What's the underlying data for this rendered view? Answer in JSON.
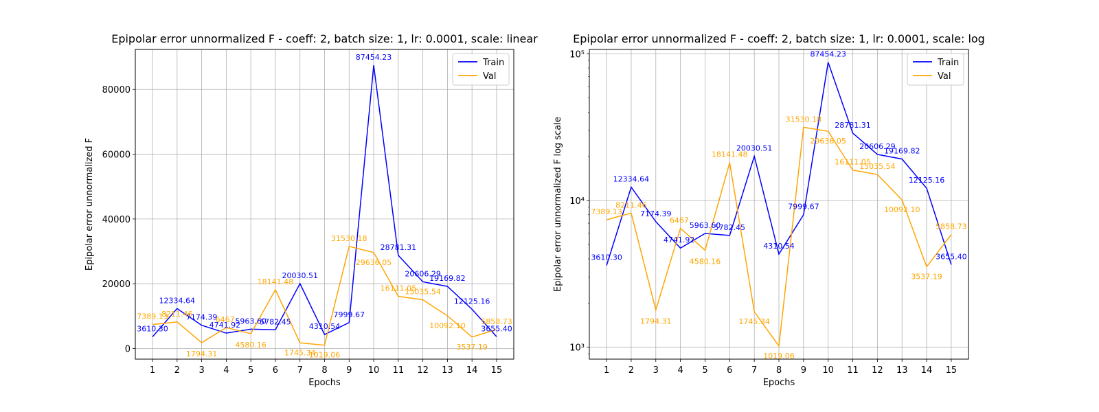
{
  "chart_data": [
    {
      "type": "line",
      "title": "Epipolar error unnormalized F - coeff: 2, batch size: 1, lr: 0.0001, scale: linear",
      "xlabel": "Epochs",
      "ylabel": "Epipolar error unnormalized F",
      "yscale": "linear",
      "x": [
        1,
        2,
        3,
        4,
        5,
        6,
        7,
        8,
        9,
        10,
        11,
        12,
        13,
        14,
        15
      ],
      "xlim": [
        0.3,
        15.7
      ],
      "ylim": [
        -3282,
        92347
      ],
      "yticks": [
        0,
        20000,
        40000,
        60000,
        80000
      ],
      "ytick_labels": [
        "0",
        "20000",
        "40000",
        "60000",
        "80000"
      ],
      "grid": true,
      "legend_position": "top-right",
      "series": [
        {
          "name": "Train",
          "color": "#0000ff",
          "values": [
            3610.3,
            12334.64,
            7174.39,
            4741.92,
            5963.6,
            5782.45,
            20030.51,
            4310.54,
            7999.67,
            87454.23,
            28781.31,
            20606.29,
            19169.82,
            12125.16,
            3655.4
          ],
          "labels": [
            "3610.30",
            "12334.64",
            "7174.39",
            "4741.92",
            "5963.60",
            "5782.45",
            "20030.51",
            "4310.54",
            "7999.67",
            "87454.23",
            "28781.31",
            "20606.29",
            "19169.82",
            "12125.16",
            "3655.40"
          ]
        },
        {
          "name": "Val",
          "color": "#ffa500",
          "values": [
            7389.13,
            8211.46,
            1794.31,
            6467.0,
            4580.16,
            18141.48,
            1745.34,
            1019.06,
            31530.18,
            29636.05,
            16111.05,
            15035.54,
            10092.1,
            3537.19,
            5858.73
          ],
          "labels": [
            "7389.13",
            "8211.46",
            "1794.31",
            "6467.",
            "4580.16",
            "18141.48",
            "1745.34",
            "1019.06",
            "31530.18",
            "29636.05",
            "16111.05",
            "15035.54",
            "10092.10",
            "3537.19",
            "5858.73"
          ]
        }
      ]
    },
    {
      "type": "line",
      "title": "Epipolar error unnormalized F - coeff: 2, batch size: 1, lr: 0.0001, scale: log",
      "xlabel": "Epochs",
      "ylabel": "Epipolar error unnormalized F log scale",
      "yscale": "log",
      "x": [
        1,
        2,
        3,
        4,
        5,
        6,
        7,
        8,
        9,
        10,
        11,
        12,
        13,
        14,
        15
      ],
      "xlim": [
        0.3,
        15.7
      ],
      "ylim": [
        830,
        107000
      ],
      "yticks": [
        1000,
        10000,
        100000
      ],
      "ytick_labels": [
        "10³",
        "10⁴",
        "10⁵"
      ],
      "grid": true,
      "legend_position": "top-right",
      "series": [
        {
          "name": "Train",
          "color": "#0000ff",
          "values": [
            3610.3,
            12334.64,
            7174.39,
            4741.92,
            5963.6,
            5782.45,
            20030.51,
            4310.54,
            7999.67,
            87454.23,
            28781.31,
            20606.29,
            19169.82,
            12125.16,
            3655.4
          ],
          "labels": [
            "3610.30",
            "12334.64",
            "7174.39",
            "4741.92",
            "5963.60",
            "5782.45",
            "20030.51",
            "4310.54",
            "7999.67",
            "87454.23",
            "28781.31",
            "20606.29",
            "19169.82",
            "12125.16",
            "3655.40"
          ]
        },
        {
          "name": "Val",
          "color": "#ffa500",
          "values": [
            7389.13,
            8211.46,
            1794.31,
            6467.0,
            4580.16,
            18141.48,
            1745.34,
            1019.06,
            31530.18,
            29636.05,
            16111.05,
            15035.54,
            10092.1,
            3537.19,
            5858.73
          ],
          "labels": [
            "7389.13",
            "8211.46",
            "1794.31",
            "6467.",
            "4580.16",
            "18141.48",
            "1745.34",
            "1019.06",
            "31530.18",
            "29636.05",
            "16111.05",
            "15035.54",
            "10092.10",
            "3537.19",
            "5858.73"
          ]
        }
      ]
    }
  ]
}
